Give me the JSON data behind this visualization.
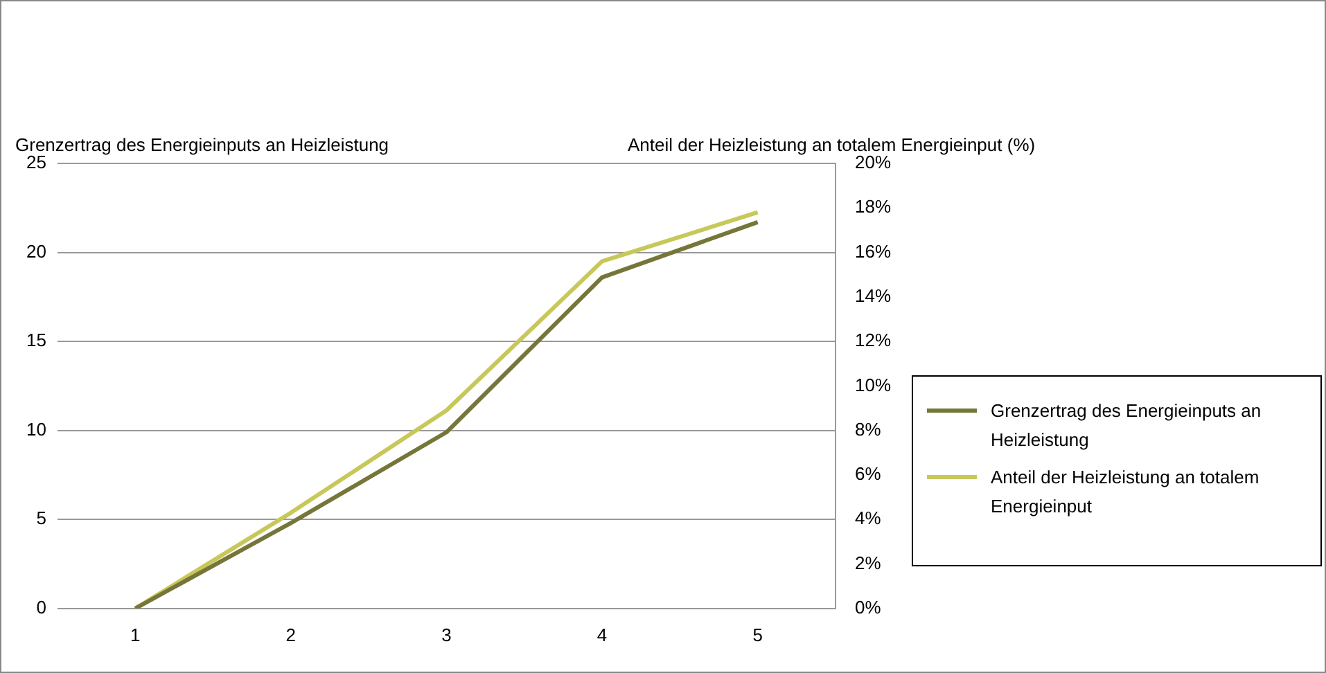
{
  "chart_data": {
    "type": "line",
    "categories": [
      "1",
      "2",
      "3",
      "4",
      "5"
    ],
    "ylabel": "Grenzertrag des Energieinputs an Heizleistung",
    "y2label": "Anteil der Heizleistung an totalem Energieinput (%)",
    "series": [
      {
        "name": "Grenzertrag des Energieinputs an Heizleistung",
        "color": "#76763a",
        "values": [
          0,
          4.8,
          9.9,
          18.6,
          21.7
        ]
      },
      {
        "name": "Anteil der Heizleistung an totalem Energieinput",
        "color": "#c8c85a",
        "values": [
          0,
          4.3,
          8.9,
          15.6,
          17.8
        ],
        "axis": "y2"
      }
    ],
    "ylim": [
      0,
      25
    ],
    "yticks": [
      0,
      5,
      10,
      15,
      20,
      25
    ],
    "y2lim": [
      0,
      20
    ],
    "y2ticks": [
      {
        "value": 0,
        "label": "0%"
      },
      {
        "value": 2,
        "label": "2%"
      },
      {
        "value": 4,
        "label": "4%"
      },
      {
        "value": 6,
        "label": "6%"
      },
      {
        "value": 8,
        "label": "8%"
      },
      {
        "value": 10,
        "label": "10%"
      },
      {
        "value": 12,
        "label": "12%"
      },
      {
        "value": 14,
        "label": "14%"
      },
      {
        "value": 16,
        "label": "16%"
      },
      {
        "value": 18,
        "label": "18%"
      },
      {
        "value": 20,
        "label": "20%"
      }
    ],
    "grid": "y",
    "legend": "right",
    "marker": "none",
    "line_style": "solid"
  }
}
